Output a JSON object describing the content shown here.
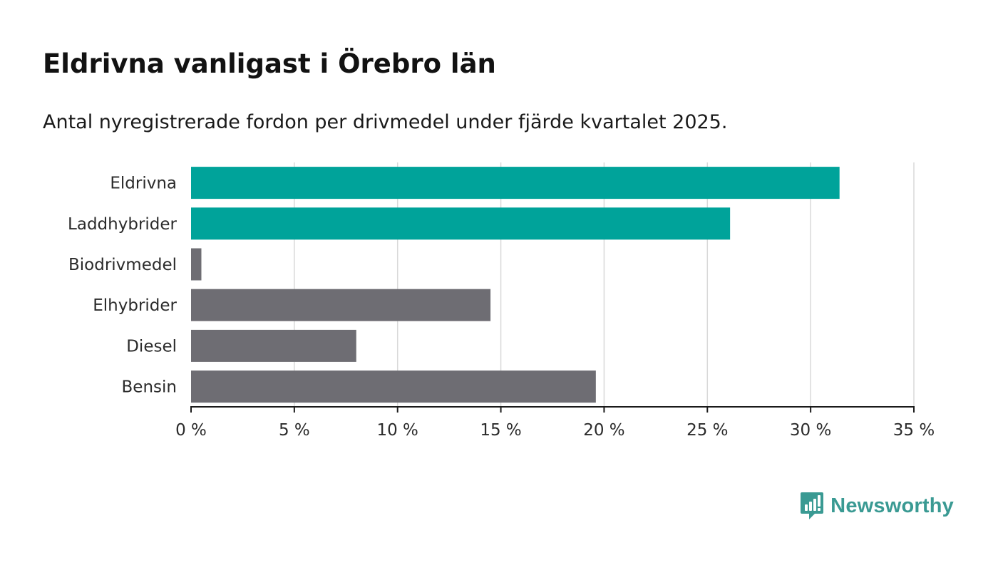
{
  "colors": {
    "highlight": "#00a39a",
    "default": "#6e6d73",
    "grid": "#d9d9d9",
    "axis": "#1a1a1a",
    "brand": "#3a9a93"
  },
  "brand": {
    "name": "Newsworthy",
    "icon": "bar-chart-speech-bubble-icon"
  },
  "chart_data": {
    "type": "bar",
    "orientation": "horizontal",
    "title": "Eldrivna vanligast i Örebro län",
    "subtitle": "Antal nyregistrerade fordon per drivmedel under fjärde kvartalet 2025.",
    "categories": [
      "Eldrivna",
      "Laddhybrider",
      "Biodrivmedel",
      "Elhybrider",
      "Diesel",
      "Bensin"
    ],
    "values": [
      31.4,
      26.1,
      0.5,
      14.5,
      8.0,
      19.6
    ],
    "highlighted": [
      true,
      true,
      false,
      false,
      false,
      false
    ],
    "xlim": [
      0,
      35
    ],
    "xticks": [
      0,
      5,
      10,
      15,
      20,
      25,
      30,
      35
    ],
    "xtick_labels": [
      "0 %",
      "5 %",
      "10 %",
      "15 %",
      "20 %",
      "25 %",
      "30 %",
      "35 %"
    ],
    "xlabel": "",
    "ylabel": "",
    "grid": "vertical",
    "legend": "none"
  }
}
